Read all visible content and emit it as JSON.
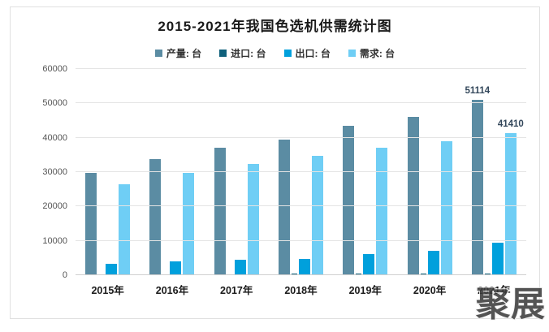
{
  "title": "2015-2021年我国色选机供需统计图",
  "watermark_text": "聚展",
  "colors": {
    "production": "#5b8ca3",
    "import": "#10617c",
    "export": "#00a0dc",
    "demand": "#6fcef5",
    "gridline": "#e4e4e4",
    "annotation": "#33475b"
  },
  "chart_data": {
    "type": "bar",
    "title": "2015-2021年我国色选机供需统计图",
    "categories": [
      "2015年",
      "2016年",
      "2017年",
      "2018年",
      "2019年",
      "2020年",
      "2021年"
    ],
    "series": [
      {
        "name": "产量: 台",
        "color": "#5b8ca3",
        "values": [
          29800,
          33700,
          37000,
          39500,
          43500,
          46000,
          51114
        ]
      },
      {
        "name": "进口: 台",
        "color": "#10617c",
        "values": [
          300,
          320,
          350,
          380,
          420,
          450,
          500
        ]
      },
      {
        "name": "出口: 台",
        "color": "#00a0dc",
        "values": [
          3400,
          3900,
          4600,
          4700,
          6100,
          7200,
          9500
        ]
      },
      {
        "name": "需求: 台",
        "color": "#6fcef5",
        "values": [
          26500,
          29800,
          32400,
          34700,
          37200,
          39000,
          41410
        ]
      }
    ],
    "annotations": [
      {
        "series_index": 0,
        "category_index": 6,
        "text": "51114"
      },
      {
        "series_index": 3,
        "category_index": 6,
        "text": "41410"
      }
    ],
    "xlabel": "",
    "ylabel": "",
    "ylim": [
      0,
      60000
    ],
    "yticks": [
      0,
      10000,
      20000,
      30000,
      40000,
      50000,
      60000
    ],
    "grid": true,
    "legend_position": "top"
  }
}
